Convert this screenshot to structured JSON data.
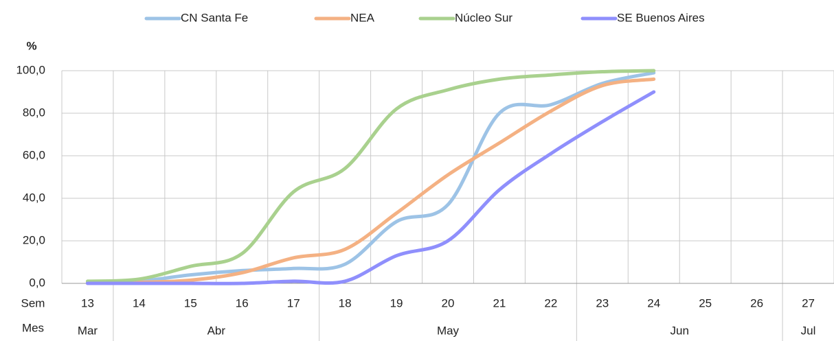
{
  "chart_data": {
    "type": "line",
    "y_label": "%",
    "week_row_label": "Sem",
    "month_row_label": "Mes",
    "categories": [
      "13",
      "14",
      "15",
      "16",
      "17",
      "18",
      "19",
      "20",
      "21",
      "22",
      "23",
      "24",
      "25",
      "26",
      "27"
    ],
    "months": [
      "Mar",
      "Abr",
      null,
      null,
      null,
      "May",
      null,
      null,
      null,
      null,
      "Jun",
      null,
      null,
      null,
      "Jul"
    ],
    "ylim": [
      0,
      100
    ],
    "yticks": [
      {
        "value": 0,
        "label": "0,0"
      },
      {
        "value": 20,
        "label": "20,0"
      },
      {
        "value": 40,
        "label": "40,0"
      },
      {
        "value": 60,
        "label": "60,0"
      },
      {
        "value": 80,
        "label": "80,0"
      },
      {
        "value": 100,
        "label": "100,0"
      }
    ],
    "grid": true,
    "legend": "top",
    "series": [
      {
        "name": "CN Santa Fe",
        "color": "#9dc3e6",
        "values": [
          0.5,
          1,
          4,
          6,
          7,
          9,
          29,
          37,
          80,
          84,
          94,
          99,
          null,
          null,
          null
        ]
      },
      {
        "name": "NEA",
        "color": "#f4b183",
        "values": [
          0,
          0.5,
          1.5,
          5,
          12,
          16,
          33,
          51,
          66,
          81,
          93,
          96,
          null,
          null,
          null
        ]
      },
      {
        "name": "Núcleo Sur",
        "color": "#a9d18e",
        "values": [
          1,
          2,
          8,
          14,
          43,
          54,
          82,
          91,
          96,
          98,
          99.5,
          100,
          null,
          null,
          null
        ]
      },
      {
        "name": "SE Buenos Aires",
        "color": "#8f8ffc",
        "values": [
          0,
          0,
          0,
          0,
          1,
          1,
          13,
          20,
          44,
          61,
          76,
          90,
          null,
          null,
          null
        ]
      }
    ]
  }
}
